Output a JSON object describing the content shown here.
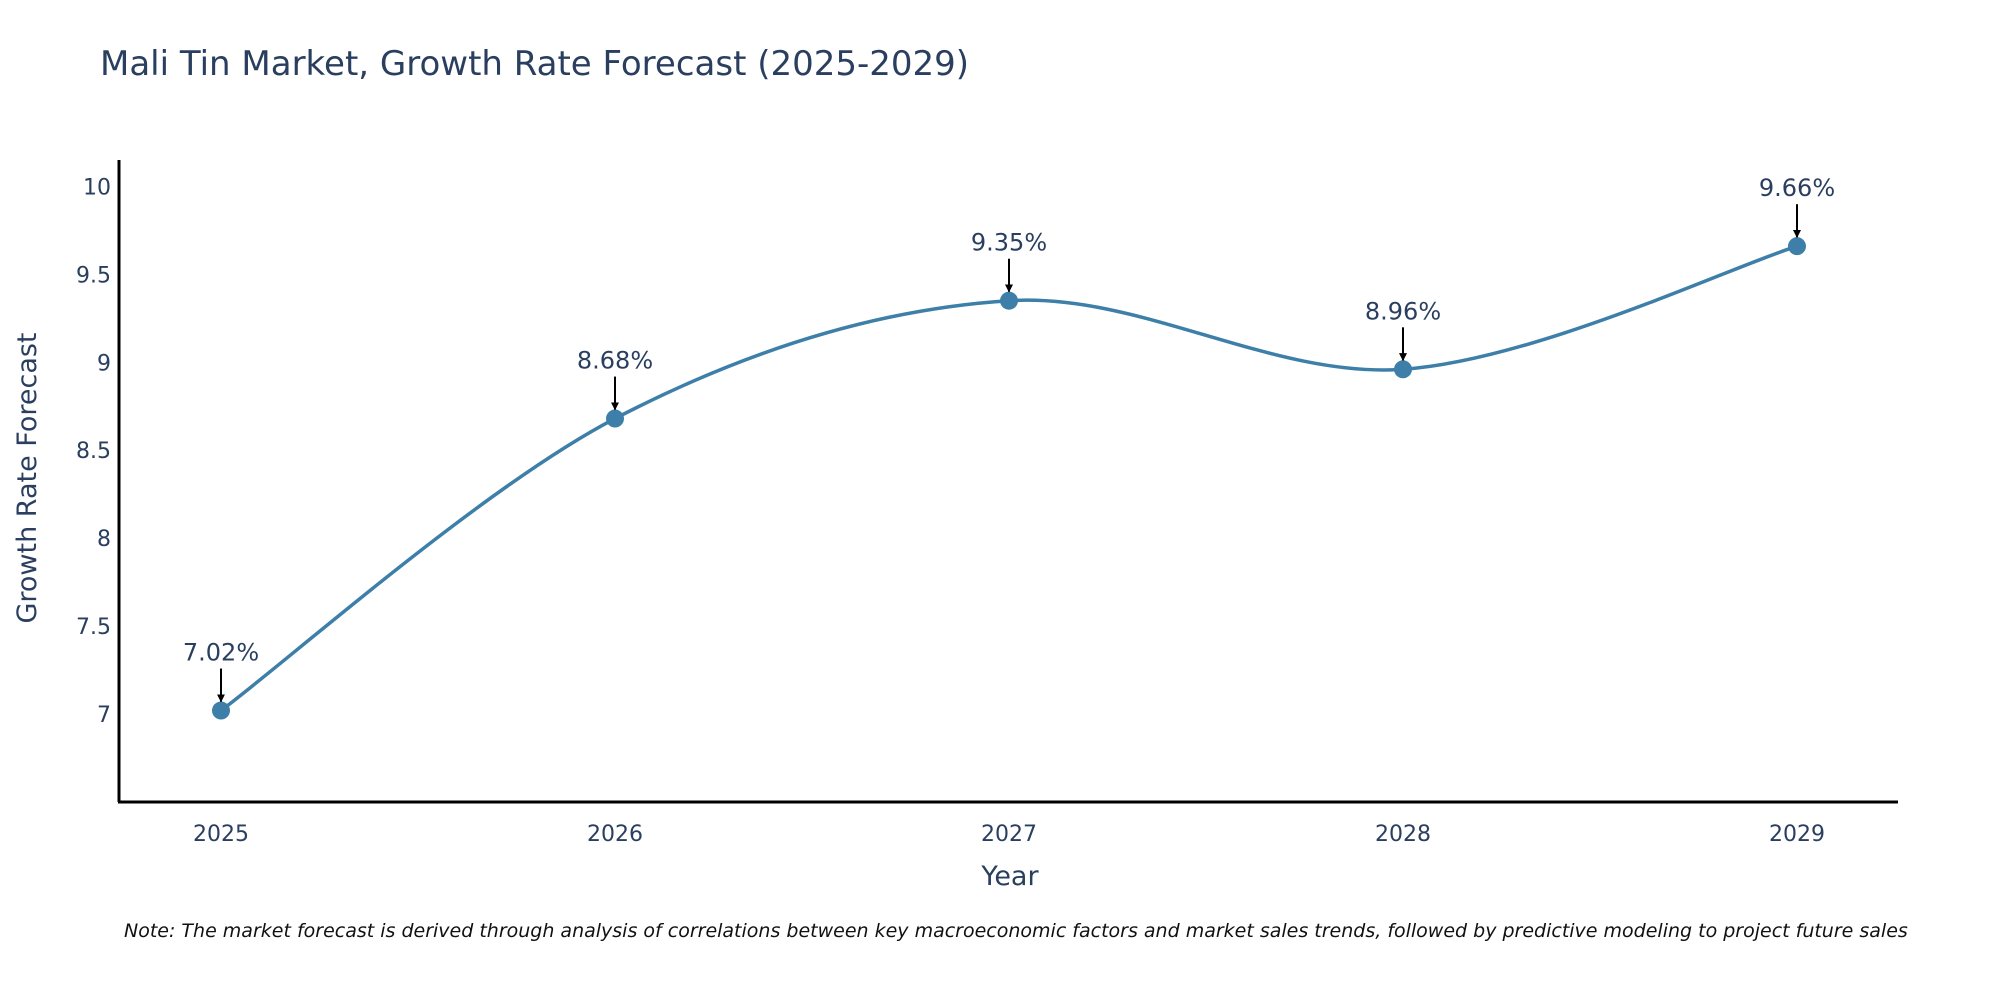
{
  "chart_data": {
    "type": "line",
    "title": "Mali Tin Market, Growth Rate Forecast (2025-2029)",
    "xlabel": "Year",
    "ylabel": "Growth Rate Forecast",
    "categories": [
      "2025",
      "2026",
      "2027",
      "2028",
      "2029"
    ],
    "series": [
      {
        "name": "Growth Rate Forecast",
        "values": [
          7.02,
          8.68,
          9.35,
          8.96,
          9.66
        ],
        "labels": [
          "7.02%",
          "8.68%",
          "9.35%",
          "8.96%",
          "9.66%"
        ]
      }
    ],
    "ylim": [
      6.5,
      10.15
    ],
    "yticks": [
      7,
      7.5,
      8,
      8.5,
      9,
      9.5,
      10
    ],
    "ytick_labels": [
      "7",
      "7.5",
      "8",
      "8.5",
      "9",
      "9.5",
      "10"
    ],
    "grid": false,
    "line_color": "#3d7fa8",
    "marker_color": "#3d7fa8",
    "arrow_color": "#000000"
  },
  "note": "Note: The market forecast is derived through analysis of correlations between key macroeconomic factors and market sales trends, followed by predictive modeling to project future sales"
}
